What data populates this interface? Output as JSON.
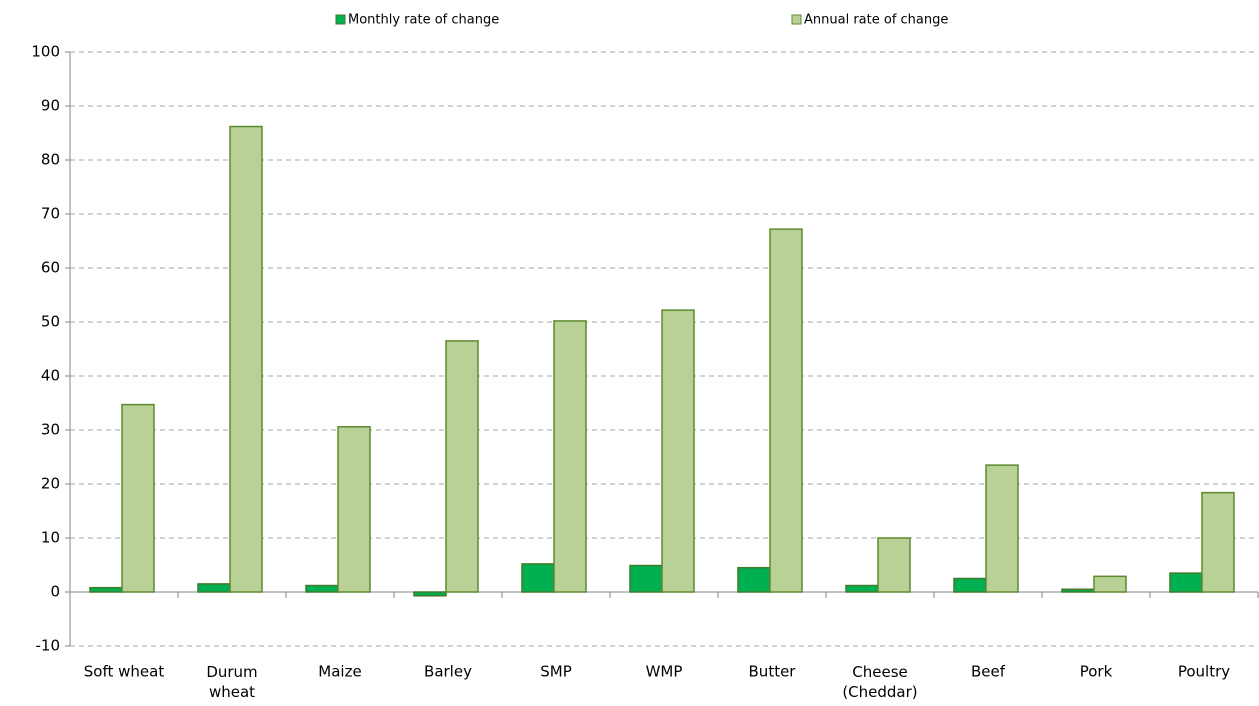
{
  "chart_data": {
    "type": "bar",
    "categories": [
      "Soft wheat",
      "Durum\nwheat",
      "Maize",
      "Barley",
      "SMP",
      "WMP",
      "Butter",
      "Cheese\n(Cheddar)",
      "Beef",
      "Pork",
      "Poultry"
    ],
    "series": [
      {
        "name": "Monthly rate of change",
        "color": "#00b050",
        "values": [
          0.8,
          1.5,
          1.2,
          -0.7,
          5.2,
          4.9,
          4.5,
          1.2,
          2.5,
          0.5,
          3.5
        ]
      },
      {
        "name": "Annual rate of change",
        "color": "#b9d097",
        "values": [
          34.7,
          86.2,
          30.6,
          46.5,
          50.2,
          52.2,
          67.2,
          10.0,
          23.5,
          2.9,
          18.4
        ]
      }
    ],
    "ylim": [
      -10,
      100
    ],
    "yticks": [
      -10,
      0,
      10,
      20,
      30,
      40,
      50,
      60,
      70,
      80,
      90,
      100
    ],
    "grid": true,
    "legend": "top"
  }
}
